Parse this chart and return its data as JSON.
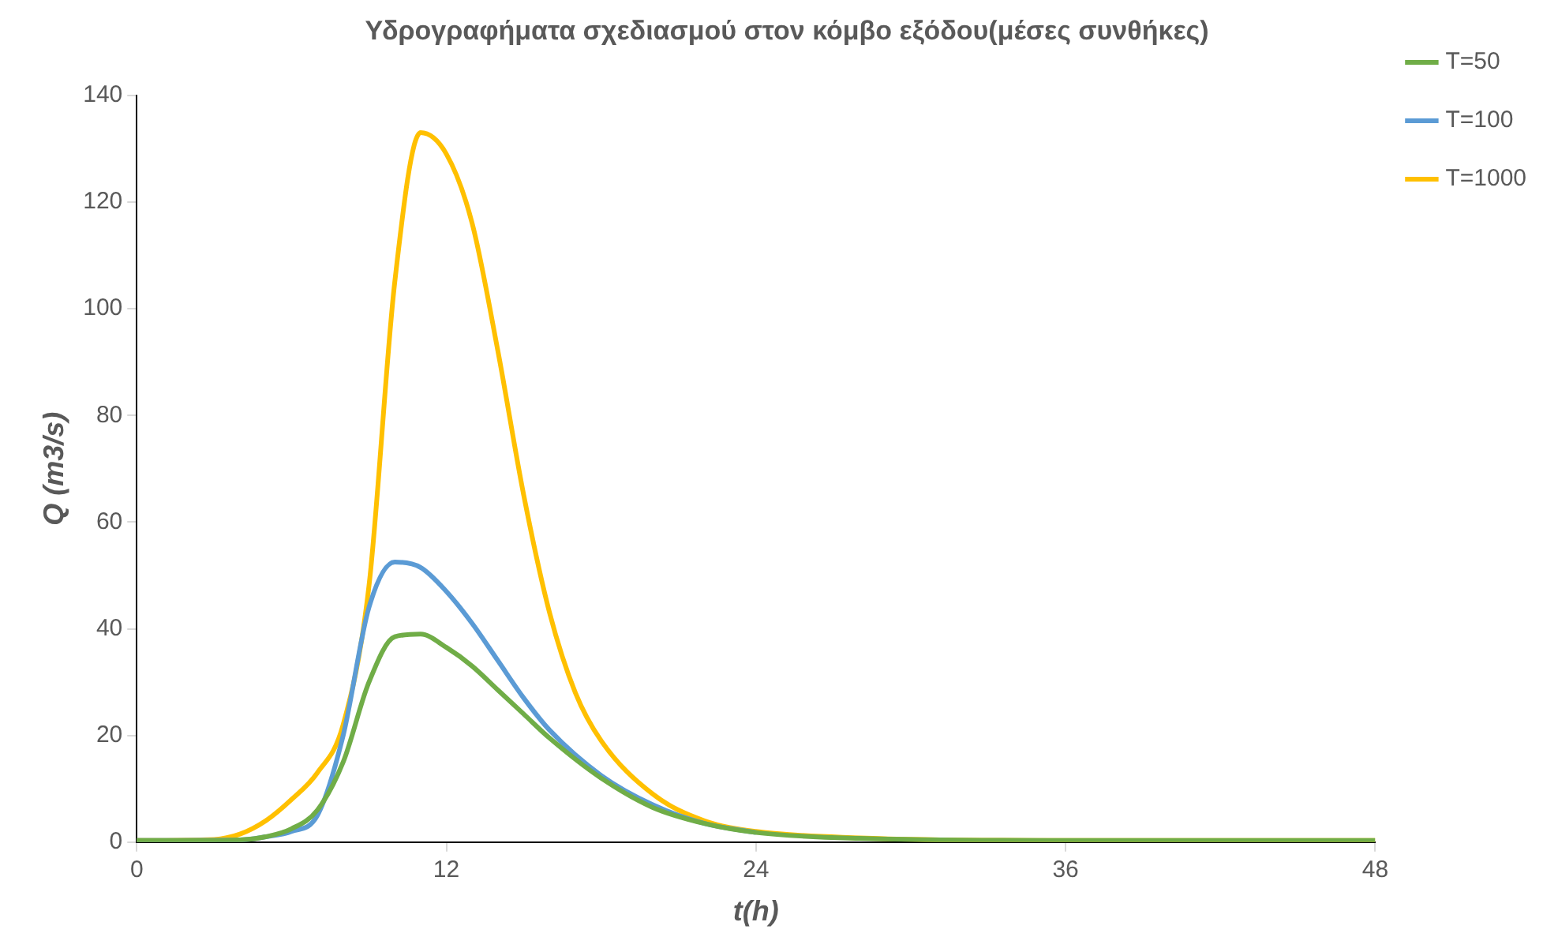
{
  "chart_data": {
    "type": "line",
    "title": "Υδρογραφήματα σχεδιασμού στον κόμβο εξόδου(μέσες συνθήκες)",
    "xlabel": "t(h)",
    "ylabel": "Q (m3/s)",
    "xlim": [
      0,
      48
    ],
    "xticks": [
      0,
      12,
      24,
      36,
      48
    ],
    "ylim": [
      0,
      140
    ],
    "yticks": [
      0,
      20,
      40,
      60,
      80,
      100,
      120,
      140
    ],
    "grid": false,
    "legend": "top right",
    "marker": "none",
    "line_style": "solid",
    "series": [
      {
        "name": "T=50",
        "color": "#70ad47",
        "x": [
          0,
          3,
          4,
          5,
          6,
          7,
          8,
          9,
          10,
          11,
          12,
          13,
          14,
          15,
          16,
          18,
          20,
          22,
          24,
          28,
          36,
          48
        ],
        "values": [
          0.3,
          0.3,
          0.4,
          1,
          2.5,
          6,
          15,
          30,
          38.5,
          39,
          36.5,
          33,
          28.5,
          24,
          19.5,
          12,
          6.5,
          3.5,
          1.8,
          0.7,
          0.3,
          0.3
        ]
      },
      {
        "name": "T=100",
        "color": "#5b9bd5",
        "x": [
          0,
          4,
          5,
          6,
          7,
          8,
          9,
          10,
          11,
          12,
          13,
          14,
          15,
          16,
          18,
          20,
          22,
          24
        ],
        "values": [
          0.3,
          0.4,
          1,
          2,
          5,
          20,
          44,
          52.5,
          51.5,
          47,
          41,
          34,
          27,
          21,
          12.5,
          7,
          3.5,
          1.8
        ]
      },
      {
        "name": "T=1000",
        "color": "#ffc000",
        "x": [
          0,
          3,
          4,
          5,
          6,
          7,
          8,
          9,
          10,
          11,
          12,
          13,
          14,
          15,
          16,
          17,
          18,
          20,
          22,
          24,
          28,
          36,
          48
        ],
        "values": [
          0.3,
          0.5,
          1.5,
          4,
          8,
          13,
          22,
          48,
          105,
          133,
          129,
          116,
          92,
          65,
          43,
          28,
          19,
          9,
          4,
          2,
          0.8,
          0.3,
          0.3
        ]
      }
    ]
  }
}
